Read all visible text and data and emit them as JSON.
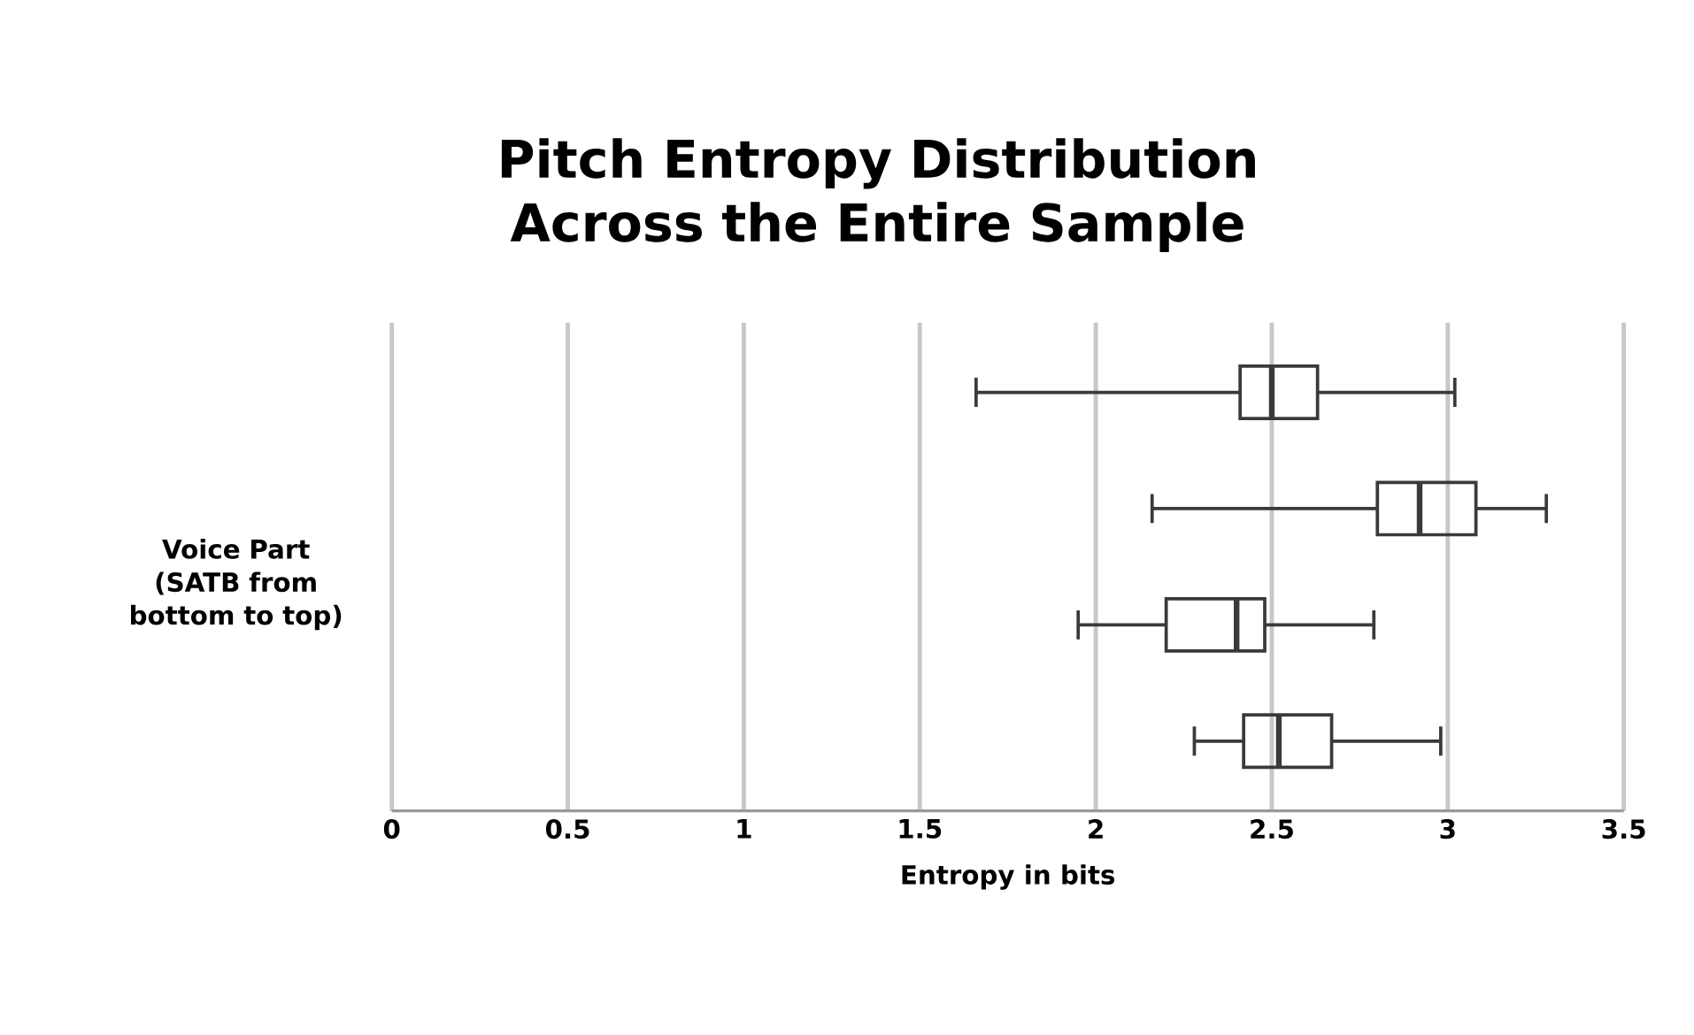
{
  "chart_data": {
    "type": "box",
    "orientation": "horizontal",
    "title": "Pitch Entropy Distribution Across the Entire Sample",
    "xlabel": "Entropy in bits",
    "ylabel": "Voice Part (SATB from bottom to top)",
    "categories": [
      null,
      null,
      null,
      null
    ],
    "boxes": [
      {
        "low": 1.66,
        "q1": 2.41,
        "median": 2.5,
        "q3": 2.63,
        "high": 3.02
      },
      {
        "low": 2.16,
        "q1": 2.8,
        "median": 2.92,
        "q3": 3.08,
        "high": 3.28
      },
      {
        "low": 1.95,
        "q1": 2.2,
        "median": 2.4,
        "q3": 2.48,
        "high": 2.79
      },
      {
        "low": 2.28,
        "q1": 2.42,
        "median": 2.52,
        "q3": 2.67,
        "high": 2.98
      }
    ],
    "color": "#3a3a3a",
    "xlim": [
      0,
      3.5
    ],
    "xticks": [
      0,
      0.5,
      1,
      1.5,
      2,
      2.5,
      3,
      3.5
    ],
    "grid": "x"
  }
}
